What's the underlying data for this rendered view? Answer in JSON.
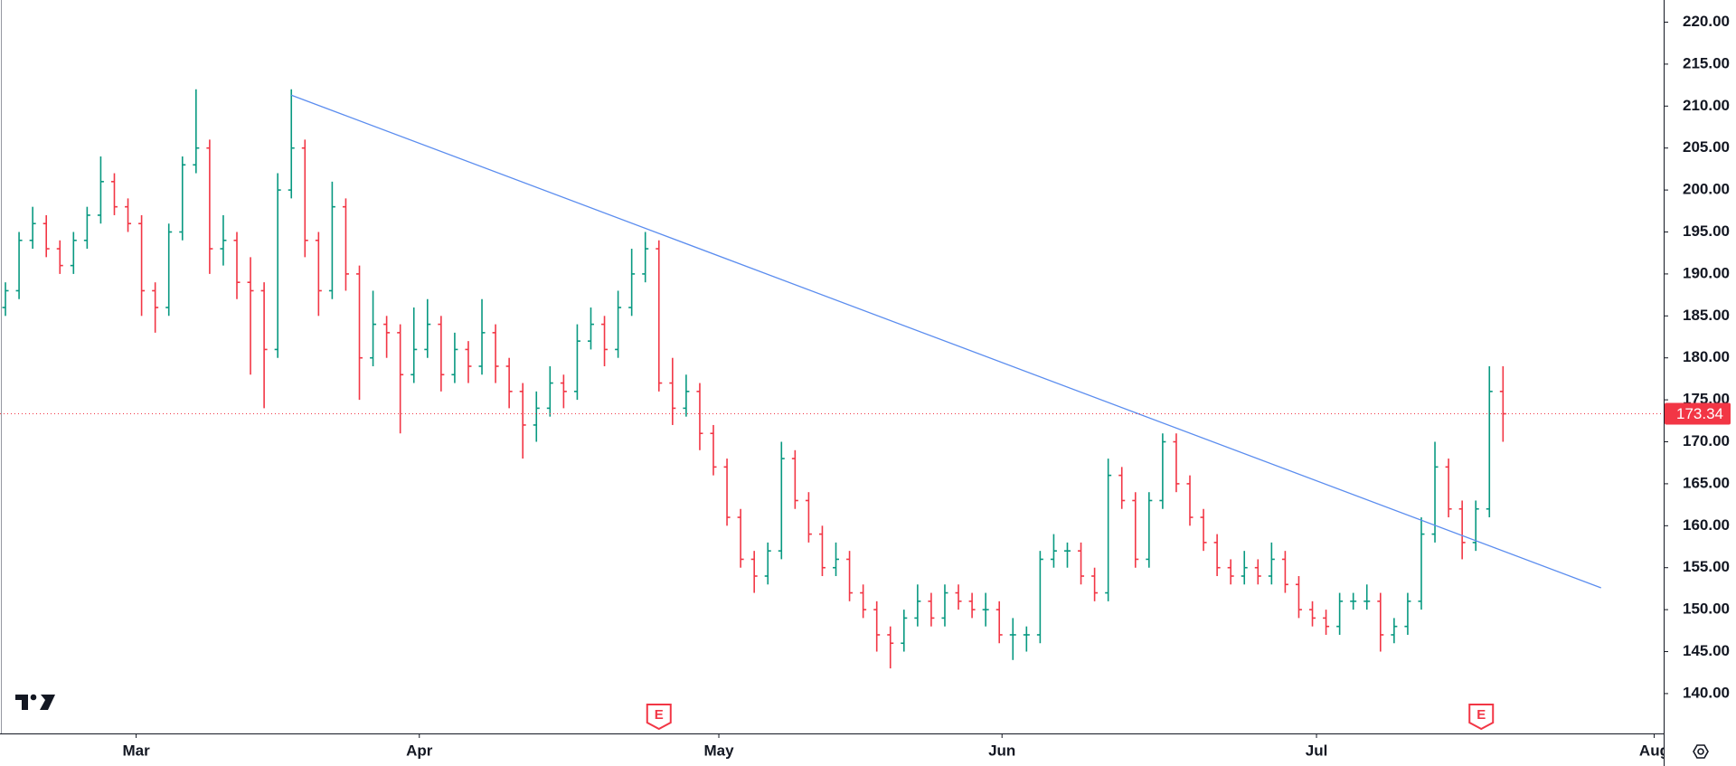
{
  "chart_data": {
    "type": "ohlc",
    "up_color": "#089981",
    "down_color": "#f23645",
    "xlim": [
      -0.4,
      121.8
    ],
    "xticks": [
      {
        "value": 9.6,
        "label": "Mar"
      },
      {
        "value": 30.4,
        "label": "Apr"
      },
      {
        "value": 52.4,
        "label": "May"
      },
      {
        "value": 73.2,
        "label": "Jun"
      },
      {
        "value": 96.3,
        "label": "Jul"
      },
      {
        "value": 121.1,
        "label": "Aug"
      }
    ],
    "ylim": [
      135.25,
      222.64
    ],
    "yticks": [
      {
        "value": 140,
        "label": "140.00"
      },
      {
        "value": 145,
        "label": "145.00"
      },
      {
        "value": 150,
        "label": "150.00"
      },
      {
        "value": 155,
        "label": "155.00"
      },
      {
        "value": 160,
        "label": "160.00"
      },
      {
        "value": 165,
        "label": "165.00"
      },
      {
        "value": 170,
        "label": "170.00"
      },
      {
        "value": 175,
        "label": "175.00"
      },
      {
        "value": 180,
        "label": "180.00"
      },
      {
        "value": 185,
        "label": "185.00"
      },
      {
        "value": 190,
        "label": "190.00"
      },
      {
        "value": 195,
        "label": "195.00"
      },
      {
        "value": 200,
        "label": "200.00"
      },
      {
        "value": 205,
        "label": "205.00"
      },
      {
        "value": 210,
        "label": "210.00"
      },
      {
        "value": 215,
        "label": "215.00"
      },
      {
        "value": 220,
        "label": "220.00"
      }
    ],
    "ohlc": [
      [
        186,
        189,
        185,
        188
      ],
      [
        188,
        195,
        187,
        194
      ],
      [
        194,
        198,
        193,
        196
      ],
      [
        196,
        197,
        192,
        193
      ],
      [
        193,
        194,
        190,
        191
      ],
      [
        191,
        195,
        190,
        194
      ],
      [
        194,
        198,
        193,
        197
      ],
      [
        197,
        204,
        196,
        201
      ],
      [
        201,
        202,
        197,
        198
      ],
      [
        198,
        199,
        195,
        196
      ],
      [
        196,
        197,
        185,
        188
      ],
      [
        188,
        189,
        183,
        186
      ],
      [
        186,
        196,
        185,
        195
      ],
      [
        195,
        204,
        194,
        203
      ],
      [
        203,
        212,
        202,
        205
      ],
      [
        205,
        206,
        190,
        193
      ],
      [
        193,
        197,
        191,
        194
      ],
      [
        194,
        195,
        187,
        189
      ],
      [
        189,
        192,
        178,
        188
      ],
      [
        188,
        189,
        174,
        181
      ],
      [
        181,
        202,
        180,
        200
      ],
      [
        200,
        212,
        199,
        205
      ],
      [
        205,
        206,
        192,
        194
      ],
      [
        194,
        195,
        185,
        188
      ],
      [
        188,
        201,
        187,
        198
      ],
      [
        198,
        199,
        188,
        190
      ],
      [
        190,
        191,
        175,
        180
      ],
      [
        180,
        188,
        179,
        184
      ],
      [
        184,
        185,
        180,
        183
      ],
      [
        183,
        184,
        171,
        178
      ],
      [
        178,
        186,
        177,
        181
      ],
      [
        181,
        187,
        180,
        184
      ],
      [
        184,
        185,
        176,
        178
      ],
      [
        178,
        183,
        177,
        181
      ],
      [
        181,
        182,
        177,
        179
      ],
      [
        179,
        187,
        178,
        183
      ],
      [
        183,
        184,
        177,
        179
      ],
      [
        179,
        180,
        174,
        176
      ],
      [
        176,
        177,
        168,
        172
      ],
      [
        172,
        176,
        170,
        174
      ],
      [
        174,
        179,
        173,
        177
      ],
      [
        177,
        178,
        174,
        176
      ],
      [
        176,
        184,
        175,
        182
      ],
      [
        182,
        186,
        181,
        184
      ],
      [
        184,
        185,
        179,
        181
      ],
      [
        181,
        188,
        180,
        186
      ],
      [
        186,
        193,
        185,
        190
      ],
      [
        190,
        195,
        189,
        193
      ],
      [
        193,
        194,
        176,
        177
      ],
      [
        177,
        180,
        172,
        174
      ],
      [
        174,
        178,
        173,
        176
      ],
      [
        176,
        177,
        169,
        171
      ],
      [
        171,
        172,
        166,
        167
      ],
      [
        167,
        168,
        160,
        161
      ],
      [
        161,
        162,
        155,
        156
      ],
      [
        156,
        157,
        152,
        154
      ],
      [
        154,
        158,
        153,
        157
      ],
      [
        157,
        170,
        156,
        168
      ],
      [
        168,
        169,
        162,
        163
      ],
      [
        163,
        164,
        158,
        159
      ],
      [
        159,
        160,
        154,
        155
      ],
      [
        155,
        158,
        154,
        156
      ],
      [
        156,
        157,
        151,
        152
      ],
      [
        152,
        153,
        149,
        150
      ],
      [
        150,
        151,
        145,
        147
      ],
      [
        147,
        148,
        143,
        146
      ],
      [
        146,
        150,
        145,
        149
      ],
      [
        149,
        153,
        148,
        151
      ],
      [
        151,
        152,
        148,
        149
      ],
      [
        149,
        153,
        148,
        152
      ],
      [
        152,
        153,
        150,
        151
      ],
      [
        151,
        152,
        149,
        150
      ],
      [
        150,
        152,
        148,
        150
      ],
      [
        150,
        151,
        146,
        147
      ],
      [
        147,
        149,
        144,
        147
      ],
      [
        147,
        148,
        145,
        147
      ],
      [
        147,
        157,
        146,
        156
      ],
      [
        156,
        159,
        155,
        157
      ],
      [
        157,
        158,
        155,
        157
      ],
      [
        157,
        158,
        153,
        154
      ],
      [
        154,
        155,
        151,
        152
      ],
      [
        152,
        168,
        151,
        166
      ],
      [
        166,
        167,
        162,
        163
      ],
      [
        163,
        164,
        155,
        156
      ],
      [
        156,
        164,
        155,
        163
      ],
      [
        163,
        171,
        162,
        170
      ],
      [
        170,
        171,
        164,
        165
      ],
      [
        165,
        166,
        160,
        161
      ],
      [
        161,
        162,
        157,
        158
      ],
      [
        158,
        159,
        154,
        155
      ],
      [
        155,
        156,
        153,
        154
      ],
      [
        154,
        157,
        153,
        155
      ],
      [
        155,
        156,
        153,
        154
      ],
      [
        154,
        158,
        153,
        156
      ],
      [
        156,
        157,
        152,
        153
      ],
      [
        153,
        154,
        149,
        150
      ],
      [
        150,
        151,
        148,
        149
      ],
      [
        149,
        150,
        147,
        148
      ],
      [
        148,
        152,
        147,
        151
      ],
      [
        151,
        152,
        150,
        151
      ],
      [
        151,
        153,
        150,
        151
      ],
      [
        151,
        152,
        145,
        147
      ],
      [
        147,
        149,
        146,
        148
      ],
      [
        148,
        152,
        147,
        151
      ],
      [
        151,
        161,
        150,
        159
      ],
      [
        159,
        170,
        158,
        167
      ],
      [
        167,
        168,
        161,
        162
      ],
      [
        162,
        163,
        156,
        158
      ],
      [
        158,
        163,
        157,
        162
      ],
      [
        162,
        179,
        161,
        176
      ],
      [
        176,
        179,
        170,
        173.34
      ]
    ],
    "trendline": {
      "color": "#5b8def",
      "x": [
        21,
        117.2
      ],
      "y": [
        211.3,
        152.6
      ]
    },
    "events": [
      {
        "x": 48,
        "label": "E"
      },
      {
        "x": 108.4,
        "label": "E"
      }
    ],
    "last_price_color": "#f23645"
  }
}
